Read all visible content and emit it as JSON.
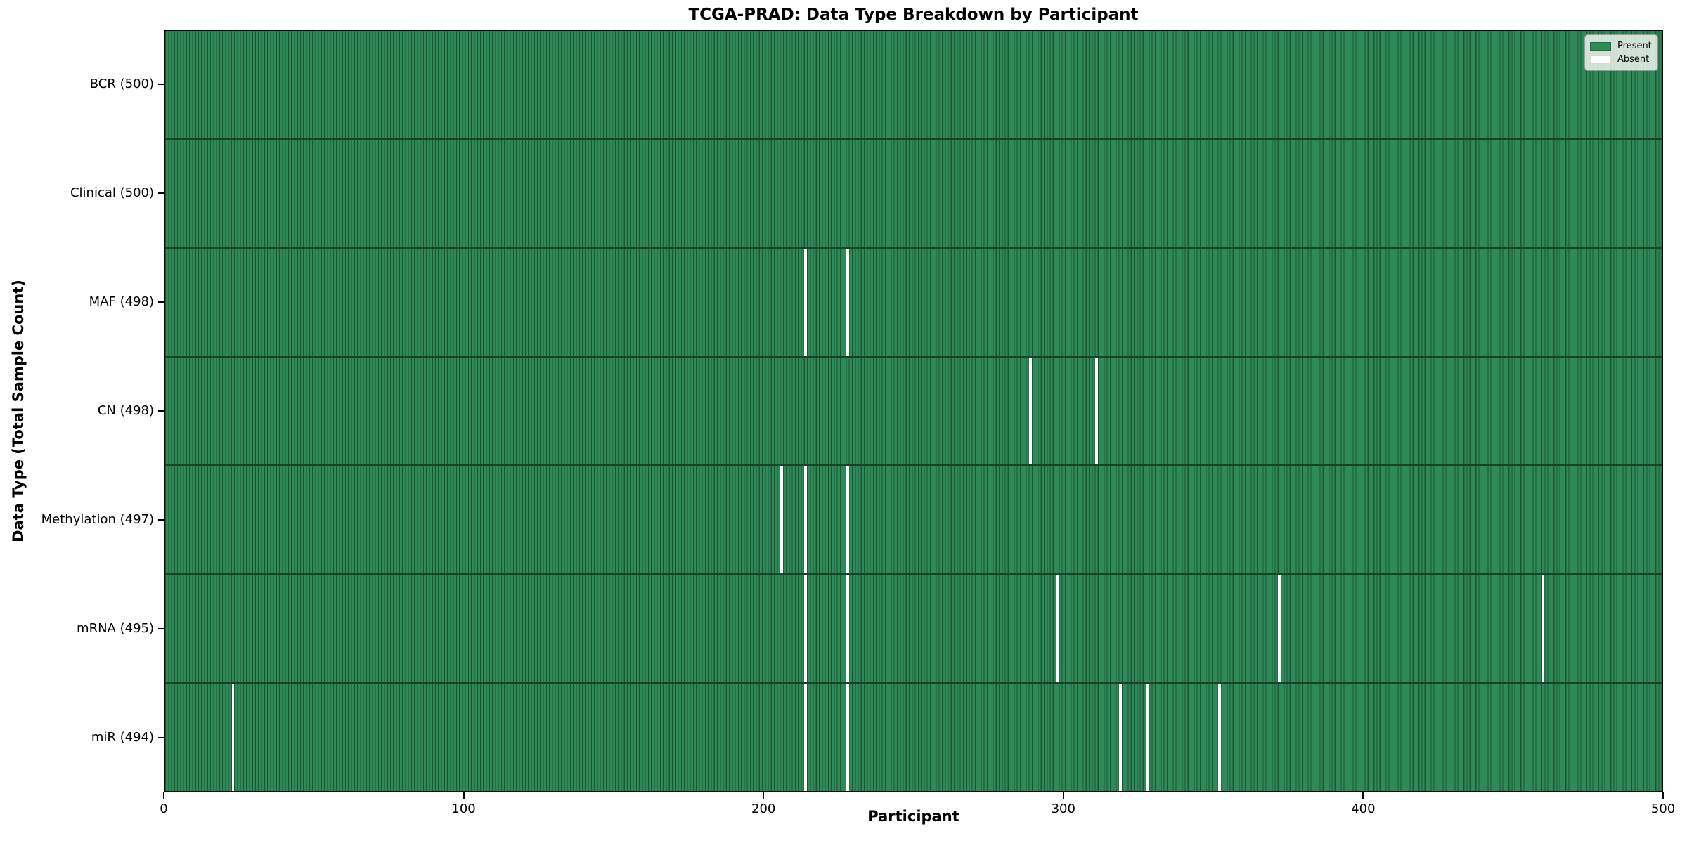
{
  "chart_data": {
    "type": "heatmap",
    "title": "TCGA-PRAD: Data Type Breakdown by Participant",
    "xlabel": "Participant",
    "ylabel": "Data Type (Total Sample Count)",
    "x_range": [
      0,
      500
    ],
    "x_ticks": [
      "0",
      "100",
      "200",
      "300",
      "400",
      "500"
    ],
    "n_participants": 500,
    "grid": false,
    "legend": {
      "position": "upper right",
      "entries": [
        {
          "label": "Present",
          "color": "#2e8b57"
        },
        {
          "label": "Absent",
          "color": "#ffffff"
        }
      ]
    },
    "rows": [
      {
        "name": "BCR",
        "label": "BCR (500)",
        "total": 500,
        "absent_participants": []
      },
      {
        "name": "Clinical",
        "label": "Clinical (500)",
        "total": 500,
        "absent_participants": []
      },
      {
        "name": "MAF",
        "label": "MAF (498)",
        "total": 498,
        "absent_participants": [
          213,
          227
        ]
      },
      {
        "name": "CN",
        "label": "CN (498)",
        "total": 498,
        "absent_participants": [
          288,
          310
        ]
      },
      {
        "name": "Methylation",
        "label": "Methylation (497)",
        "total": 497,
        "absent_participants": [
          205,
          213,
          227
        ]
      },
      {
        "name": "mRNA",
        "label": "mRNA (495)",
        "total": 495,
        "absent_participants": [
          213,
          227,
          297,
          371,
          459
        ]
      },
      {
        "name": "miR",
        "label": "miR (494)",
        "total": 494,
        "absent_participants": [
          22,
          213,
          227,
          318,
          327,
          351
        ]
      }
    ],
    "colors": {
      "present_fill": "#2e8b57",
      "cell_edge": "#1c5434",
      "row_boundary": "#17432a",
      "absent": "#ffffff",
      "spine": "#000000",
      "background": "#ffffff"
    }
  }
}
